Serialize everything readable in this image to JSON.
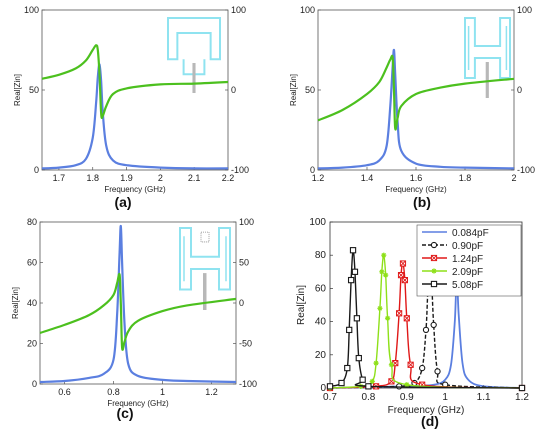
{
  "colors": {
    "blue": "#5b7fe0",
    "green": "#4cc01e",
    "inset": "#8fe3f0",
    "inset_probe": "#b8b8b8",
    "d_series": [
      "#5b7fe0",
      "#1a1a1a",
      "#e01818",
      "#8ee019",
      "#1a1a1a"
    ]
  },
  "chart_data": [
    {
      "type": "line",
      "panel": "a",
      "caption": "(a)",
      "xlabel": "Frequency (GHz)",
      "ylabel_left": "Real[Zin]",
      "xlim": [
        1.65,
        2.2
      ],
      "ylim_left": [
        0,
        100
      ],
      "ylim_right": [
        -100,
        100
      ],
      "xticks": [
        "1.7",
        "1.8",
        "1.9",
        "2",
        "2.1",
        "2.2"
      ],
      "xtick_values": [
        1.7,
        1.8,
        1.9,
        2.0,
        2.1,
        2.2
      ],
      "yticks_left": [
        "0",
        "50",
        "100"
      ],
      "ytick_left_values": [
        0,
        50,
        100
      ],
      "yticks_right": [
        "-100",
        "0",
        "100"
      ],
      "ytick_right_values": [
        -100,
        0,
        100
      ],
      "resonance_x": 1.82,
      "series": [
        {
          "axis": "left",
          "color": "blue",
          "x": [
            1.65,
            1.7,
            1.75,
            1.78,
            1.8,
            1.81,
            1.815,
            1.82,
            1.825,
            1.83,
            1.84,
            1.86,
            1.9,
            2.0,
            2.1,
            2.2
          ],
          "y": [
            1,
            1.5,
            3,
            7,
            20,
            42,
            58,
            66,
            55,
            35,
            15,
            6,
            3,
            1.5,
            1,
            1
          ]
        },
        {
          "axis": "right",
          "color": "green",
          "x": [
            1.65,
            1.7,
            1.75,
            1.78,
            1.8,
            1.81,
            1.815,
            1.82,
            1.825,
            1.83,
            1.84,
            1.86,
            1.9,
            2.0,
            2.1,
            2.2
          ],
          "y": [
            14,
            19,
            27,
            37,
            50,
            56,
            50,
            20,
            -30,
            -32,
            -20,
            -5,
            2,
            7,
            8,
            10
          ]
        }
      ]
    },
    {
      "type": "line",
      "panel": "b",
      "caption": "(b)",
      "xlabel": "Frequency (GHz)",
      "ylabel_left": "Real[Zin]",
      "xlim": [
        1.2,
        2.0
      ],
      "ylim_left": [
        0,
        100
      ],
      "ylim_right": [
        -100,
        100
      ],
      "xticks": [
        "1.2",
        "1.4",
        "1.6",
        "1.8",
        "2"
      ],
      "xtick_values": [
        1.2,
        1.4,
        1.6,
        1.8,
        2.0
      ],
      "yticks_left": [
        "0",
        "50",
        "100"
      ],
      "ytick_left_values": [
        0,
        50,
        100
      ],
      "yticks_right": [
        "-100",
        "0",
        "100"
      ],
      "ytick_right_values": [
        -100,
        0,
        100
      ],
      "resonance_x": 1.51,
      "series": [
        {
          "axis": "left",
          "color": "blue",
          "x": [
            1.2,
            1.3,
            1.4,
            1.45,
            1.48,
            1.495,
            1.505,
            1.51,
            1.515,
            1.525,
            1.54,
            1.6,
            1.7,
            1.8,
            2.0
          ],
          "y": [
            1,
            1.5,
            3,
            6,
            15,
            40,
            65,
            75,
            60,
            30,
            12,
            4,
            2,
            1.5,
            1
          ]
        },
        {
          "axis": "right",
          "color": "green",
          "x": [
            1.2,
            1.3,
            1.4,
            1.45,
            1.48,
            1.495,
            1.505,
            1.51,
            1.515,
            1.525,
            1.54,
            1.6,
            1.7,
            1.8,
            2.0
          ],
          "y": [
            -38,
            -25,
            -5,
            10,
            28,
            38,
            40,
            0,
            -48,
            -35,
            -20,
            -5,
            3,
            8,
            14
          ]
        }
      ]
    },
    {
      "type": "line",
      "panel": "c",
      "caption": "(c)",
      "xlabel": "Frequency (GHz)",
      "ylabel_left": "Real[Zin]",
      "xlim": [
        0.5,
        1.3
      ],
      "ylim_left": [
        0,
        80
      ],
      "ylim_right": [
        -100,
        100
      ],
      "xticks": [
        "0.6",
        "0.8",
        "1",
        "1.2"
      ],
      "xtick_values": [
        0.6,
        0.8,
        1.0,
        1.2
      ],
      "yticks_left": [
        "0",
        "20",
        "40",
        "60",
        "80"
      ],
      "ytick_left_values": [
        0,
        20,
        40,
        60,
        80
      ],
      "yticks_right": [
        "-100",
        "-50",
        "0",
        "50",
        "100"
      ],
      "ytick_right_values": [
        -100,
        -50,
        0,
        50,
        100
      ],
      "resonance_x": 0.83,
      "series": [
        {
          "axis": "left",
          "color": "blue",
          "x": [
            0.5,
            0.6,
            0.7,
            0.76,
            0.8,
            0.815,
            0.825,
            0.83,
            0.835,
            0.845,
            0.86,
            0.9,
            1.0,
            1.1,
            1.3
          ],
          "y": [
            1,
            1.5,
            3,
            5,
            12,
            35,
            65,
            78,
            60,
            30,
            10,
            4,
            2,
            1.5,
            1
          ]
        },
        {
          "axis": "right",
          "color": "green",
          "x": [
            0.5,
            0.6,
            0.7,
            0.76,
            0.8,
            0.815,
            0.825,
            0.83,
            0.835,
            0.845,
            0.86,
            0.9,
            1.0,
            1.1,
            1.3
          ],
          "y": [
            -37,
            -27,
            -15,
            -3,
            10,
            25,
            35,
            0,
            -55,
            -48,
            -35,
            -22,
            -10,
            -3,
            5
          ]
        }
      ]
    },
    {
      "type": "line",
      "panel": "d",
      "caption": "(d)",
      "xlabel": "Frequency (GHz)",
      "ylabel": "Real[Zin]",
      "xlim": [
        0.7,
        1.2
      ],
      "ylim": [
        0,
        100
      ],
      "xticks": [
        "0.7",
        "0.8",
        "0.9",
        "1",
        "1.1",
        "1.2"
      ],
      "xtick_values": [
        0.7,
        0.8,
        0.9,
        1.0,
        1.1,
        1.2
      ],
      "yticks": [
        "0",
        "20",
        "40",
        "60",
        "80",
        "100"
      ],
      "ytick_values": [
        0,
        20,
        40,
        60,
        80,
        100
      ],
      "legend_position": "top-right",
      "series": [
        {
          "name": "0.084pF",
          "marker": "none",
          "dash": "none",
          "x": [
            0.7,
            0.9,
            0.97,
            1.0,
            1.015,
            1.025,
            1.03,
            1.035,
            1.045,
            1.06,
            1.1,
            1.2
          ],
          "y": [
            0,
            1,
            2,
            5,
            14,
            40,
            67,
            45,
            15,
            5,
            1,
            0
          ]
        },
        {
          "name": "0.90pF",
          "marker": "circle",
          "dash": "4,2",
          "x": [
            0.7,
            0.88,
            0.92,
            0.94,
            0.95,
            0.955,
            0.96,
            0.965,
            0.97,
            0.98,
            1.0,
            1.2
          ],
          "y": [
            0,
            1,
            3,
            12,
            35,
            60,
            75,
            62,
            38,
            10,
            2,
            0
          ]
        },
        {
          "name": "1.24pF",
          "marker": "x",
          "dash": "none",
          "x": [
            0.7,
            0.82,
            0.86,
            0.87,
            0.88,
            0.885,
            0.89,
            0.895,
            0.9,
            0.91,
            0.94,
            1.2
          ],
          "y": [
            0,
            1,
            4,
            15,
            45,
            68,
            75,
            65,
            42,
            14,
            2,
            0
          ]
        },
        {
          "name": "2.09pF",
          "marker": "star",
          "dash": "none",
          "x": [
            0.7,
            0.78,
            0.81,
            0.82,
            0.83,
            0.835,
            0.84,
            0.845,
            0.85,
            0.86,
            0.9,
            1.2
          ],
          "y": [
            0,
            1,
            4,
            15,
            48,
            70,
            80,
            68,
            42,
            14,
            2,
            0
          ]
        },
        {
          "name": "5.08pF",
          "marker": "square",
          "dash": "none",
          "x": [
            0.7,
            0.73,
            0.745,
            0.75,
            0.755,
            0.76,
            0.765,
            0.77,
            0.775,
            0.785,
            0.8,
            1.2
          ],
          "y": [
            1,
            3,
            12,
            35,
            65,
            83,
            70,
            42,
            18,
            5,
            1,
            0
          ]
        }
      ]
    }
  ]
}
